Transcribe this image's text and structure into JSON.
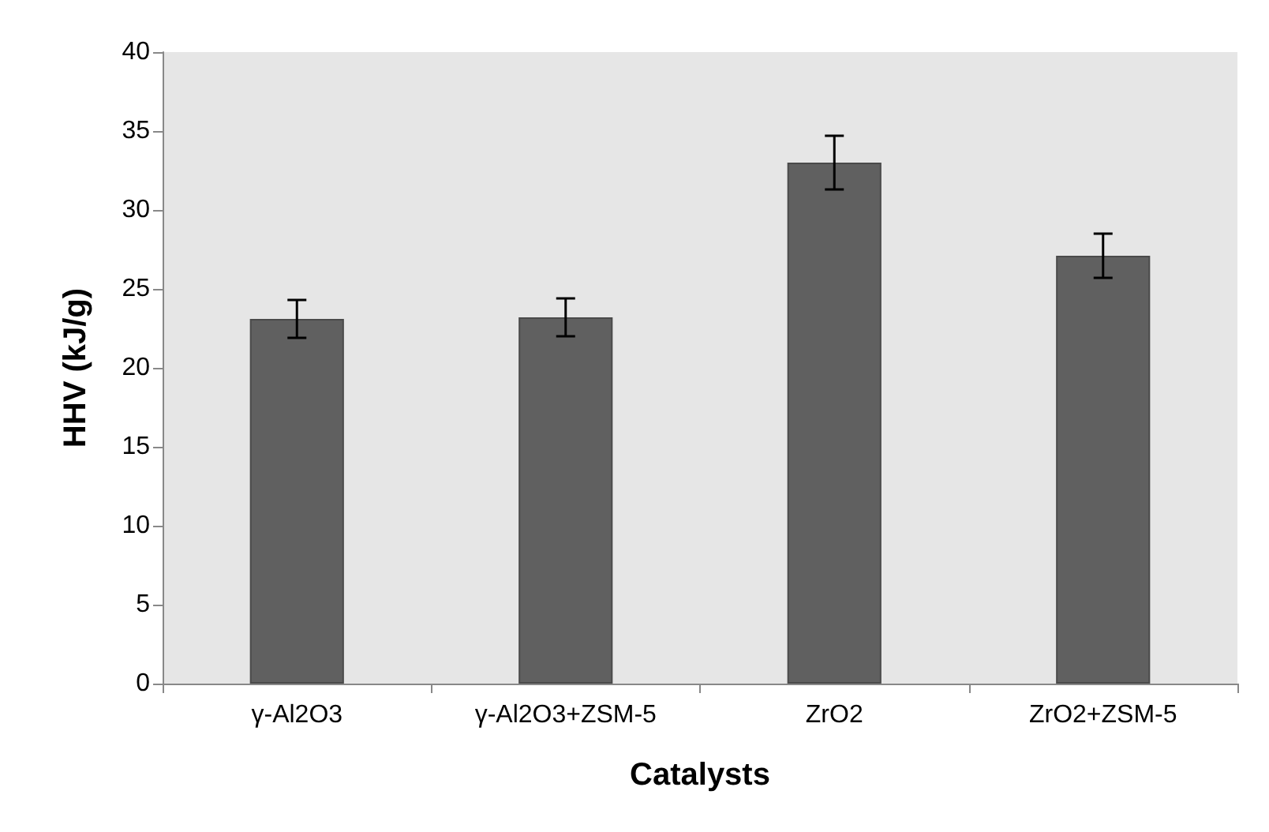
{
  "chart_data": {
    "type": "bar",
    "xlabel": "Catalysts",
    "ylabel": "HHV (kJ/g)",
    "categories": [
      "γ-Al2O3",
      "γ-Al2O3+ZSM-5",
      "ZrO2",
      "ZrO2+ZSM-5"
    ],
    "values": [
      23.1,
      23.2,
      33.0,
      27.1
    ],
    "errors": [
      1.2,
      1.2,
      1.7,
      1.4
    ],
    "color": "#606060",
    "ylim": [
      0,
      40
    ],
    "yticks": [
      0,
      5,
      10,
      15,
      20,
      25,
      30,
      35,
      40
    ],
    "grid": false
  }
}
